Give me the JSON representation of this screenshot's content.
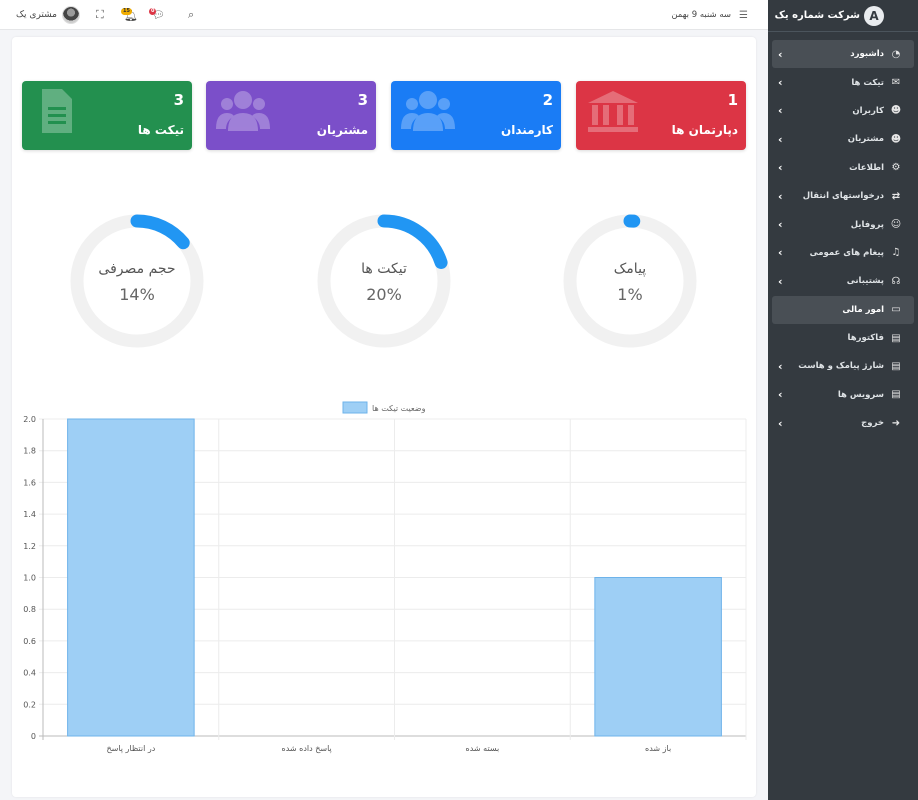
{
  "topbar": {
    "user_name": "مشتری یک",
    "date": "سه شنبه 9 بهمن",
    "notif_count": "15",
    "msg_count": "0"
  },
  "brand": {
    "name": "شرکت شماره یک",
    "logo_letter": "A"
  },
  "menu": [
    {
      "label": "داشبورد",
      "icon": "dashboard-icon",
      "glyph": "◔",
      "chevron": true,
      "active": true
    },
    {
      "label": "تیکت ها",
      "icon": "envelope-icon",
      "glyph": "✉",
      "chevron": true
    },
    {
      "label": "کاربران",
      "icon": "users-icon",
      "glyph": "☻",
      "chevron": true
    },
    {
      "label": "مشتریان",
      "icon": "customers-icon",
      "glyph": "☻",
      "chevron": true
    },
    {
      "label": "اطلاعات",
      "icon": "gear-icon",
      "glyph": "⚙",
      "chevron": true
    },
    {
      "label": "درخواستهای انتقال",
      "icon": "exchange-icon",
      "glyph": "⇄",
      "chevron": true
    },
    {
      "label": "پروفایل",
      "icon": "user-icon",
      "glyph": "☺",
      "chevron": true
    },
    {
      "label": "پیغام های عمومی",
      "icon": "bell-icon",
      "glyph": "♫",
      "chevron": true
    },
    {
      "label": "پشتیبانی",
      "icon": "headset-icon",
      "glyph": "☊",
      "chevron": true
    },
    {
      "label": "امور مالی",
      "icon": "money-icon",
      "glyph": "▭",
      "chevron": false,
      "active": true
    },
    {
      "label": "فاکتورها",
      "icon": "file-icon",
      "glyph": "▤",
      "chevron": false
    },
    {
      "label": "شارژ پیامک و هاست",
      "icon": "file-icon",
      "glyph": "▤",
      "chevron": true
    },
    {
      "label": "سرویس ها",
      "icon": "file-icon",
      "glyph": "▤",
      "chevron": true
    },
    {
      "label": "خروج",
      "icon": "logout-icon",
      "glyph": "➜",
      "chevron": true
    }
  ],
  "stats": [
    {
      "label": "دپارتمان ها",
      "value": "1",
      "color": "#dc3545",
      "icon": "bank-icon"
    },
    {
      "label": "کارمندان",
      "value": "2",
      "color": "#1a7cf5",
      "icon": "users-icon"
    },
    {
      "label": "مشتریان",
      "value": "3",
      "color": "#7b4fc9",
      "icon": "users-icon"
    },
    {
      "label": "تیکت ها",
      "value": "3",
      "color": "#23904f",
      "icon": "file-text-icon"
    }
  ],
  "donuts": [
    {
      "label": "پیامک",
      "percent": 1,
      "text": "1%"
    },
    {
      "label": "تیکت ها",
      "percent": 20,
      "text": "20%"
    },
    {
      "label": "حجم مصرفی",
      "percent": 14,
      "text": "14%"
    }
  ],
  "chart_data": {
    "type": "bar",
    "title": "",
    "legend": "وضعیت تیکت ها",
    "categories": [
      "در انتظار پاسخ",
      "پاسخ داده شده",
      "بسته شده",
      "باز شده"
    ],
    "values": [
      2,
      0,
      0,
      1
    ],
    "yticks": [
      "0",
      "0.2",
      "0.4",
      "0.6",
      "0.8",
      "1.0",
      "1.2",
      "1.4",
      "1.6",
      "1.8",
      "2.0"
    ],
    "ylim": [
      0,
      2
    ],
    "bar_color": "#9ecff5",
    "bar_border": "#6eb3ea",
    "grid": true,
    "legend_position": "top"
  }
}
